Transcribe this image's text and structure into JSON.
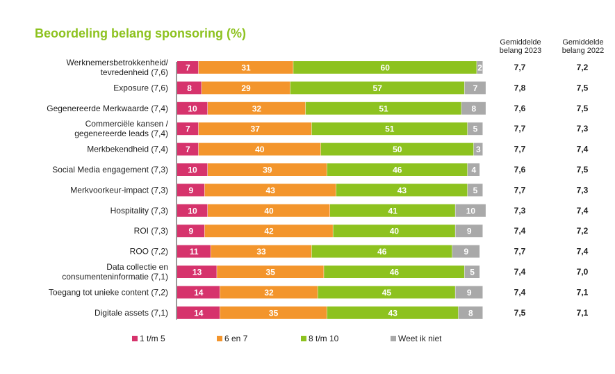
{
  "chart_data": {
    "type": "bar",
    "orientation": "horizontal",
    "stacked": true,
    "title": "Beoordeling belang sponsoring (%)",
    "categories": [
      [
        "Werknemersbetrokkenheid/",
        "tevredenheid (7,6)"
      ],
      [
        "Exposure (7,6)"
      ],
      [
        "Gegenereerde Merkwaarde (7,4)"
      ],
      [
        "Commerciële kansen /",
        "gegenereerde leads (7,4)"
      ],
      [
        "Merkbekendheid (7,4)"
      ],
      [
        "Social Media engagement (7,3)"
      ],
      [
        "Merkvoorkeur-impact (7,3)"
      ],
      [
        "Hospitality (7,3)"
      ],
      [
        "ROI (7,3)"
      ],
      [
        "ROO (7,2)"
      ],
      [
        "Data collectie en",
        "consumenteninformatie (7,1)"
      ],
      [
        "Toegang tot unieke content (7,2)"
      ],
      [
        "Digitale assets (7,1)"
      ]
    ],
    "series": [
      {
        "name": "1 t/m 5",
        "color": "#d6336c",
        "values": [
          7,
          8,
          10,
          7,
          7,
          10,
          9,
          10,
          9,
          11,
          13,
          14,
          14
        ]
      },
      {
        "name": "6 en 7",
        "color": "#f3952c",
        "values": [
          31,
          29,
          32,
          37,
          40,
          39,
          43,
          40,
          42,
          33,
          35,
          32,
          35
        ]
      },
      {
        "name": "8 t/m 10",
        "color": "#8dc21f",
        "values": [
          60,
          57,
          51,
          51,
          50,
          46,
          43,
          41,
          40,
          46,
          46,
          45,
          43
        ]
      },
      {
        "name": "Weet ik niet",
        "color": "#a9a9a9",
        "values": [
          2,
          7,
          8,
          5,
          3,
          4,
          5,
          10,
          9,
          9,
          5,
          9,
          8
        ]
      }
    ],
    "xlim": [
      0,
      100
    ],
    "legend_position": "bottom",
    "side_columns": [
      {
        "header": [
          "Gemiddelde",
          "belang 2023"
        ],
        "values": [
          "7,7",
          "7,8",
          "7,6",
          "7,7",
          "7,7",
          "7,6",
          "7,7",
          "7,3",
          "7,4",
          "7,7",
          "7,4",
          "7,4",
          "7,5"
        ]
      },
      {
        "header": [
          "Gemiddelde",
          "belang 2022"
        ],
        "values": [
          "7,2",
          "7,5",
          "7,5",
          "7,3",
          "7,4",
          "7,5",
          "7,3",
          "7,4",
          "7,2",
          "7,4",
          "7,0",
          "7,1",
          "7,1"
        ]
      }
    ]
  }
}
